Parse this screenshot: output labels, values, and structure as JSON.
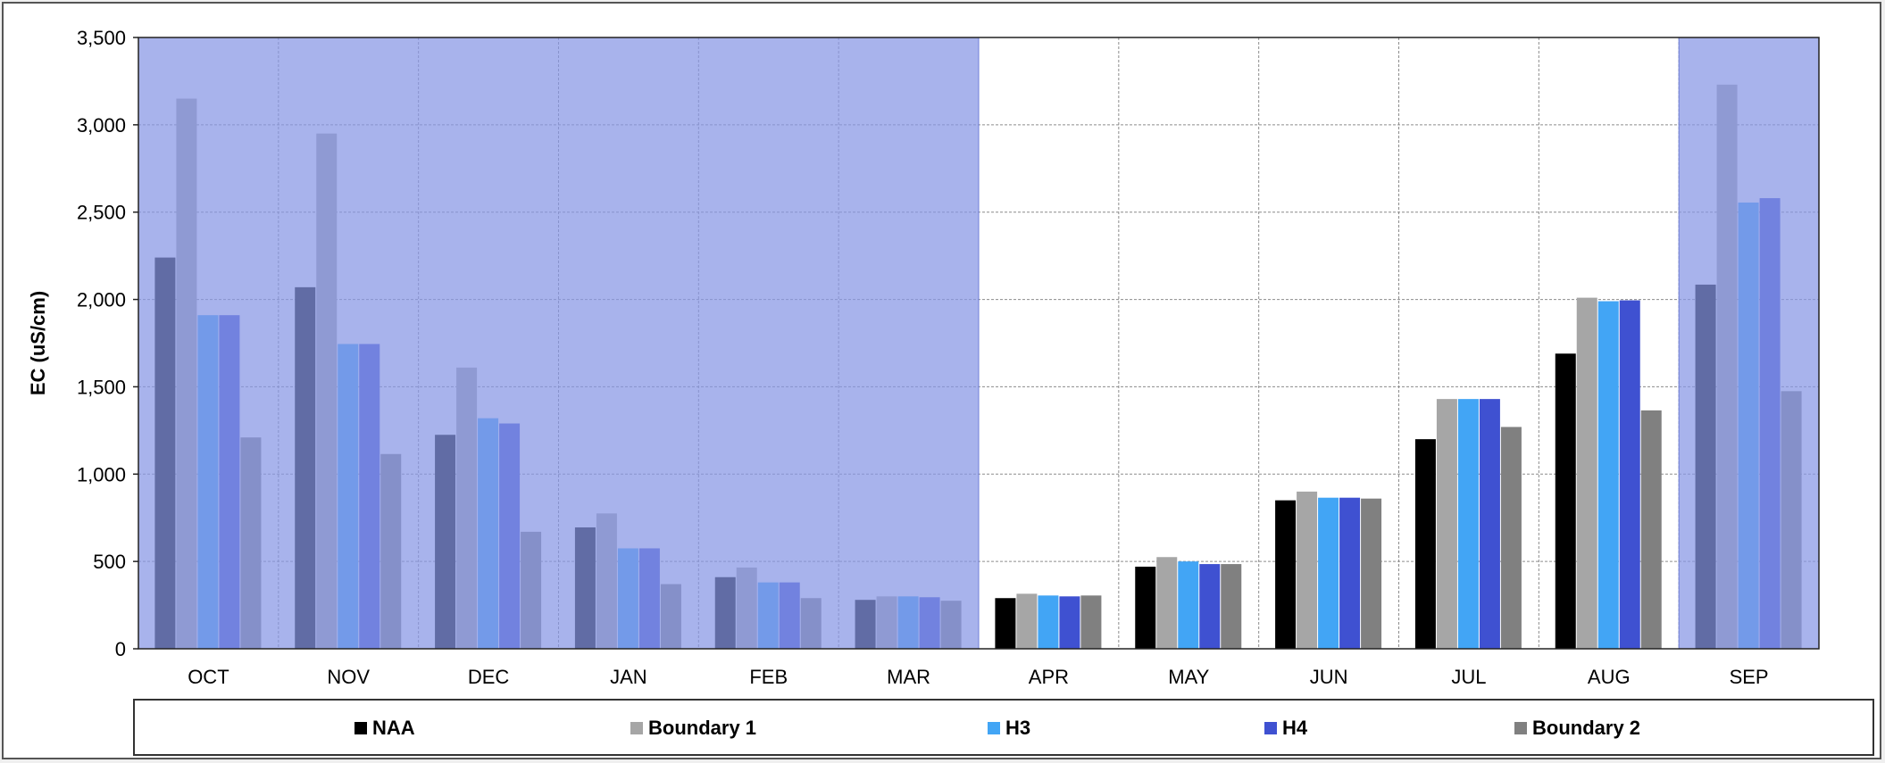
{
  "chart_data": {
    "type": "bar",
    "categories": [
      "OCT",
      "NOV",
      "DEC",
      "JAN",
      "FEB",
      "MAR",
      "APR",
      "MAY",
      "JUN",
      "JUL",
      "AUG",
      "SEP"
    ],
    "ylabel": "EC (uS/cm)",
    "ylim": [
      0,
      3500
    ],
    "yticks": [
      0,
      500,
      1000,
      1500,
      2000,
      2500,
      3000,
      3500
    ],
    "ytick_labels": [
      "0",
      "500",
      "1,000",
      "1,500",
      "2,000",
      "2,500",
      "3,000",
      "3,500"
    ],
    "grid": true,
    "legend_position": "bottom",
    "shaded_months": [
      "OCT",
      "NOV",
      "DEC",
      "JAN",
      "FEB",
      "MAR",
      "SEP"
    ],
    "shade_color": "#8796e4",
    "series": [
      {
        "name": "NAA",
        "color": "#000000",
        "values": [
          2240,
          2070,
          1225,
          695,
          410,
          280,
          290,
          470,
          850,
          1200,
          1690,
          2085
        ]
      },
      {
        "name": "Boundary 1",
        "color": "#a6a6a6",
        "values": [
          3150,
          2950,
          1610,
          775,
          465,
          300,
          315,
          525,
          900,
          1430,
          2010,
          3230
        ]
      },
      {
        "name": "H3",
        "color": "#42a5f5",
        "values": [
          1910,
          1745,
          1320,
          575,
          380,
          300,
          305,
          500,
          865,
          1430,
          1990,
          2555
        ]
      },
      {
        "name": "H4",
        "color": "#3f51d1",
        "values": [
          1910,
          1745,
          1290,
          575,
          380,
          295,
          300,
          485,
          865,
          1430,
          1995,
          2580
        ]
      },
      {
        "name": "Boundary 2",
        "color": "#808080",
        "values": [
          1210,
          1115,
          670,
          370,
          290,
          275,
          305,
          485,
          860,
          1270,
          1365,
          1475
        ]
      }
    ]
  }
}
